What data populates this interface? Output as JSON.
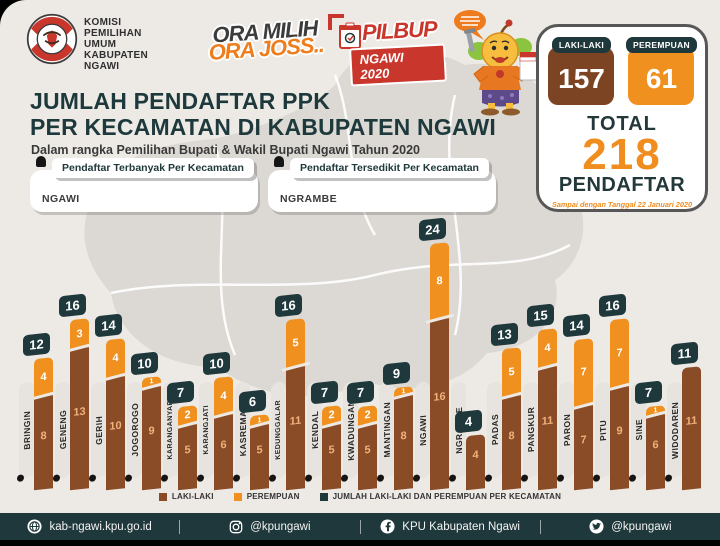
{
  "brand": {
    "org_lines": "KOMISI\nPEMILIHAN\nUMUM\nKABUPATEN\nNGAWI"
  },
  "slogan": {
    "line1": "ORA MILIH",
    "line2": "ORA JOSS.."
  },
  "event_logo": {
    "title": "PILBUP",
    "subtitle": "NGAWI 2020"
  },
  "header": {
    "title_line1": "JUMLAH PENDAFTAR PPK",
    "title_line2": "PER KECAMATAN DI KABUPATEN NGAWI",
    "subtitle": "Dalam rangka Pemilihan Bupati & Wakil Bupati Ngawi Tahun 2020"
  },
  "highlights": {
    "most": {
      "label": "Pendaftar Terbanyak Per Kecamatan",
      "value": "NGAWI"
    },
    "least": {
      "label": "Pendaftar Tersedikit Per Kecamatan",
      "value": "NGRAMBE"
    }
  },
  "summary": {
    "male_label": "LAKI-LAKI",
    "male_value": "157",
    "female_label": "PEREMPUAN",
    "female_value": "61",
    "total_label": "TOTAL",
    "total_value": "218",
    "total_caption": "PENDAFTAR",
    "as_of": "Sampai dengan Tanggal 22 Januari 2020"
  },
  "chart_data": {
    "type": "bar",
    "stacked": true,
    "title": "JUMLAH PENDAFTAR PPK PER KECAMATAN DI KABUPATEN NGAWI",
    "categories": [
      "BRINGIN",
      "GENENG",
      "GERIH",
      "JOGOROGO",
      "KARANGANYAR",
      "KARANGJATI",
      "KASREMAN",
      "KEDUNGGALAR",
      "KENDAL",
      "KWADUNGAN",
      "MANTINGAN",
      "NGAWI",
      "NGRAMBE",
      "PADAS",
      "PANGKUR",
      "PARON",
      "PITU",
      "SINE",
      "WIDODAREN"
    ],
    "series": [
      {
        "name": "LAKI-LAKI",
        "color": "#8a4c27",
        "values": [
          8,
          13,
          10,
          9,
          5,
          6,
          5,
          11,
          5,
          5,
          8,
          16,
          4,
          8,
          11,
          7,
          9,
          6,
          11
        ]
      },
      {
        "name": "PEREMPUAN",
        "color": "#f0901f",
        "values": [
          4,
          3,
          4,
          1,
          2,
          4,
          1,
          5,
          2,
          2,
          1,
          8,
          0,
          5,
          4,
          7,
          7,
          1,
          0
        ]
      }
    ],
    "totals": [
      12,
      16,
      14,
      10,
      7,
      10,
      6,
      16,
      7,
      7,
      9,
      24,
      4,
      13,
      15,
      14,
      16,
      7,
      11
    ],
    "total_badge_color": "#1f383b",
    "ylim": [
      0,
      24
    ],
    "grid": false,
    "legend_position": "bottom"
  },
  "legend": {
    "items": [
      {
        "label": "LAKI-LAKI",
        "color": "#8a4c27"
      },
      {
        "label": "PEREMPUAN",
        "color": "#f0901f"
      },
      {
        "label": "JUMLAH LAKI-LAKI DAN PEREMPUAN PER KECAMATAN",
        "color": "#1f383b"
      }
    ]
  },
  "footer": {
    "website": "kab-ngawi.kpu.go.id",
    "instagram": "@kpungawi",
    "facebook": "KPU Kabupaten Ngawi",
    "twitter": "@kpungawi"
  },
  "colors": {
    "male": "#8a4c27",
    "female": "#f0901f",
    "teal": "#1f383b",
    "accent_orange": "#ef8d1e",
    "red": "#c9362c",
    "background": "#edeae6"
  }
}
